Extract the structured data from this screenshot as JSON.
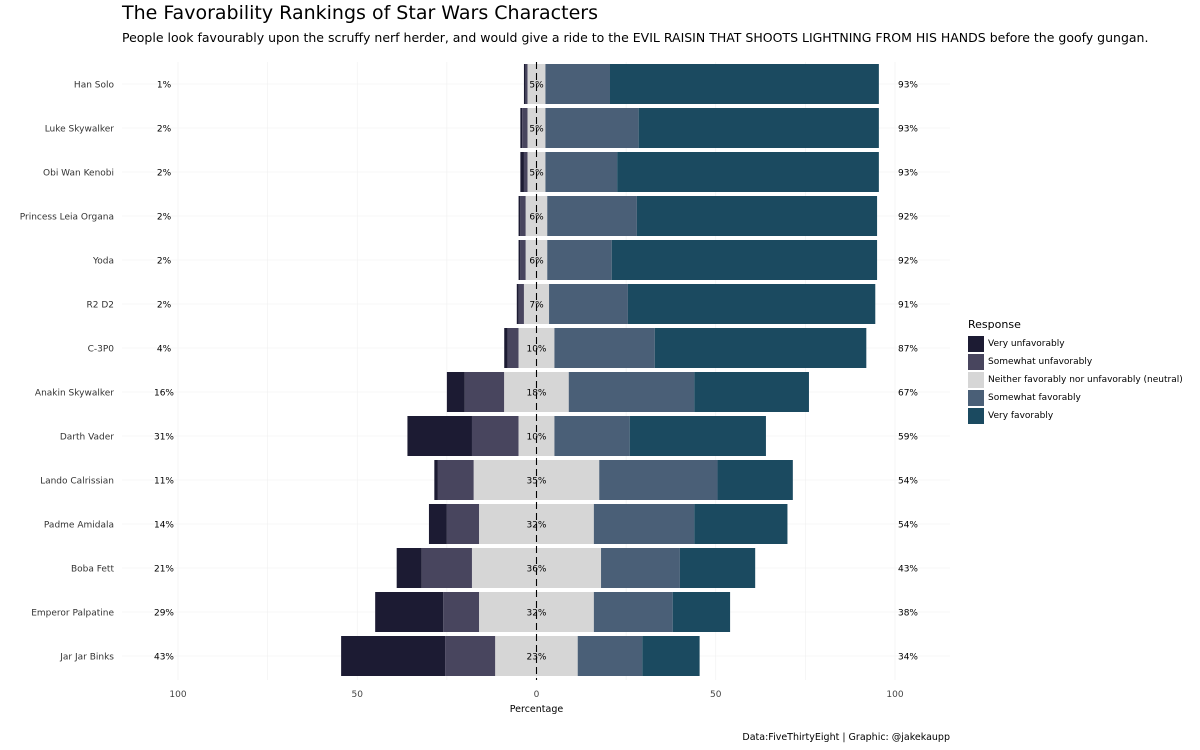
{
  "header": {
    "title": "The Favorability Rankings of Star Wars Characters",
    "subtitle": "People look favourably upon the scruffy nerf herder, and would give a ride to the EVIL RAISIN THAT SHOOTS LIGHTNING FROM HIS HANDS before the goofy gungan."
  },
  "legend": {
    "title": "Response",
    "items": [
      {
        "label": "Very unfavorably",
        "color": "#1c1b33"
      },
      {
        "label": "Somewhat unfavorably",
        "color": "#48455e"
      },
      {
        "label": "Neither favorably nor unfavorably (neutral)",
        "color": "#d6d6d6"
      },
      {
        "label": "Somewhat favorably",
        "color": "#4a5f77"
      },
      {
        "label": "Very favorably",
        "color": "#1b4a60"
      }
    ]
  },
  "caption": "Data:FiveThirtyEight | Graphic: @jakekaupp",
  "chart_data": {
    "type": "bar",
    "orientation": "horizontal-diverging",
    "xlabel": "Percentage",
    "ylabel": "",
    "xlim": [
      -100,
      100
    ],
    "xticks": [
      -100,
      -50,
      0,
      50,
      100
    ],
    "xtick_labels": [
      "100",
      "50",
      "0",
      "50",
      "100"
    ],
    "grid": true,
    "legend_position": "right",
    "categories": [
      "Han Solo",
      "Luke Skywalker",
      "Obi Wan Kenobi",
      "Princess Leia Organa",
      "Yoda",
      "R2 D2",
      "C-3P0",
      "Anakin Skywalker",
      "Darth Vader",
      "Lando Calrissian",
      "Padme Amidala",
      "Boba Fett",
      "Emperor Palpatine",
      "Jar Jar Binks"
    ],
    "series": [
      {
        "name": "Very unfavorably",
        "values": [
          0.5,
          0.5,
          1,
          0.5,
          0.5,
          0.5,
          1,
          5,
          18,
          1,
          5,
          7,
          19,
          29
        ]
      },
      {
        "name": "Somewhat unfavorably",
        "values": [
          0.5,
          1.5,
          1,
          1.5,
          1.5,
          1.5,
          3,
          11,
          13,
          10,
          9,
          14,
          10,
          14
        ]
      },
      {
        "name": "Neither favorably nor unfavorably (neutral)",
        "values": [
          5,
          5,
          5,
          6,
          6,
          7,
          10,
          18,
          10,
          35,
          32,
          36,
          32,
          23
        ]
      },
      {
        "name": "Somewhat favorably",
        "values": [
          18,
          26,
          20,
          25,
          18,
          22,
          28,
          35,
          21,
          33,
          28,
          22,
          22,
          18
        ]
      },
      {
        "name": "Very favorably",
        "values": [
          75,
          67,
          73,
          67,
          74,
          69,
          59,
          32,
          38,
          21,
          26,
          21,
          16,
          16
        ]
      }
    ],
    "unfavorable_totals": [
      "1%",
      "2%",
      "2%",
      "2%",
      "2%",
      "2%",
      "4%",
      "16%",
      "31%",
      "11%",
      "14%",
      "21%",
      "29%",
      "43%"
    ],
    "neutral_labels": [
      "5%",
      "5%",
      "5%",
      "6%",
      "6%",
      "7%",
      "10%",
      "18%",
      "10%",
      "35%",
      "32%",
      "36%",
      "32%",
      "23%"
    ],
    "favorable_totals": [
      "93%",
      "93%",
      "93%",
      "92%",
      "92%",
      "91%",
      "87%",
      "67%",
      "59%",
      "54%",
      "54%",
      "43%",
      "38%",
      "34%"
    ]
  }
}
